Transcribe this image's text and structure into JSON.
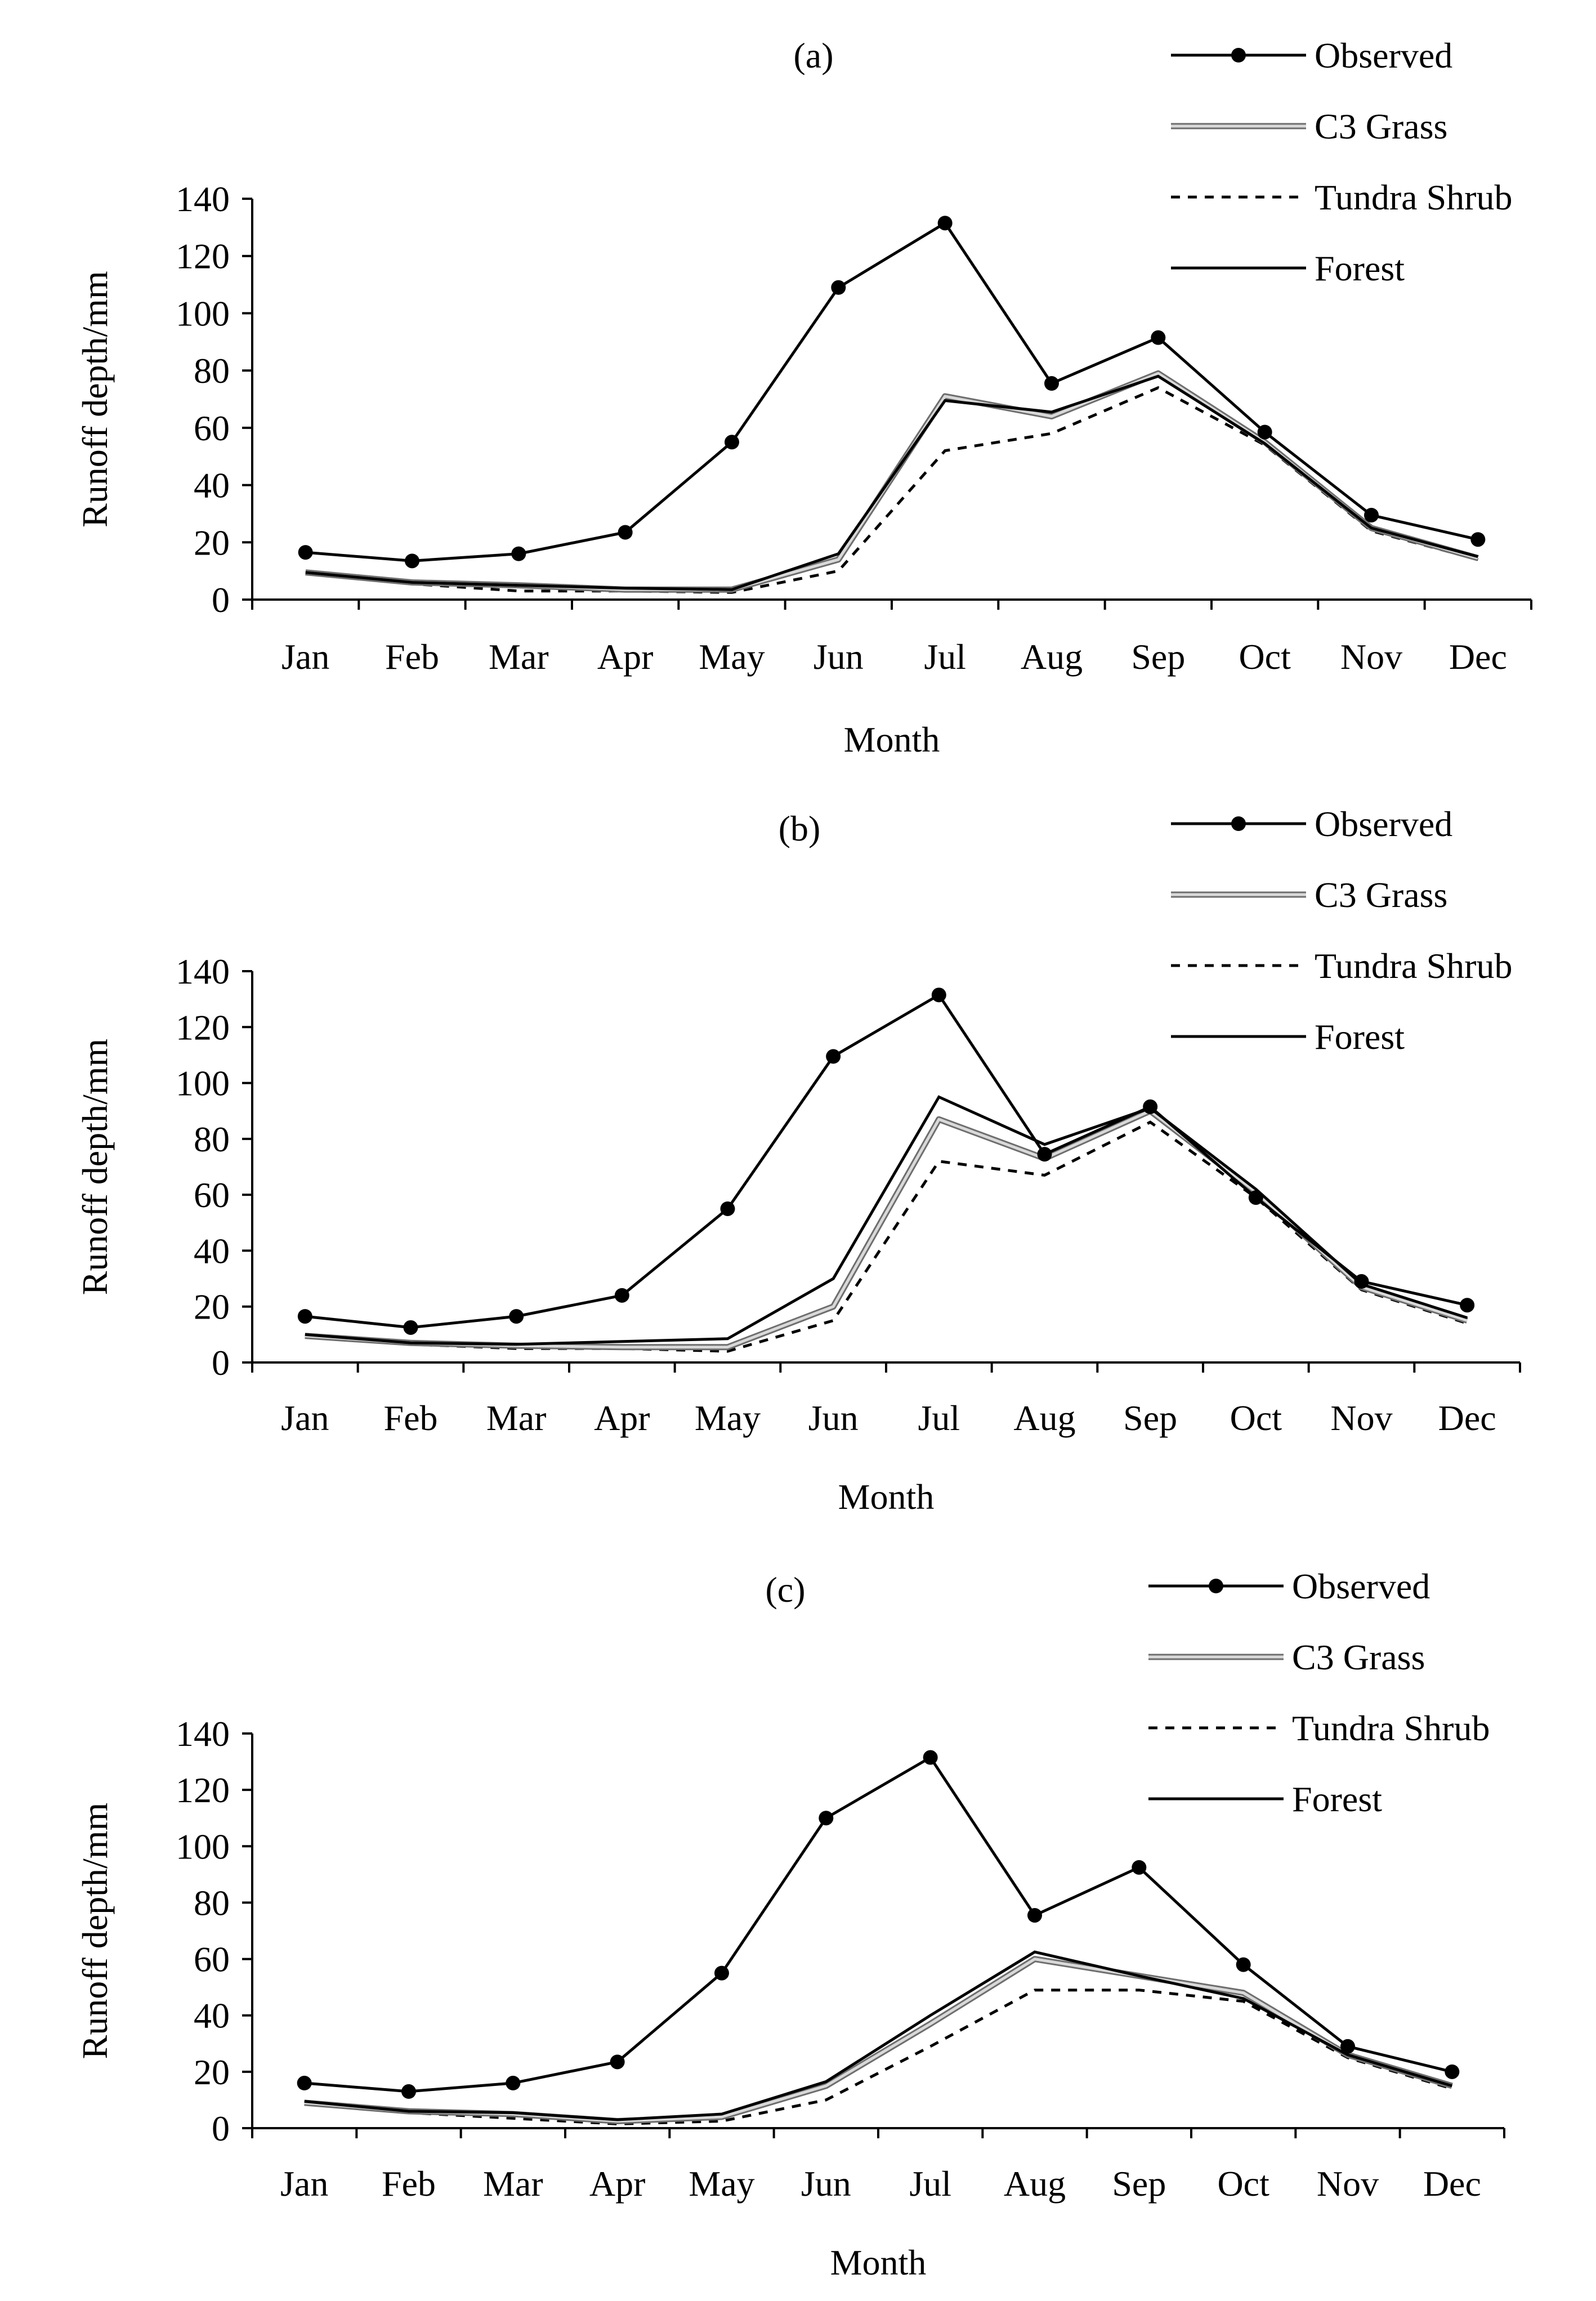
{
  "chart_data": [
    {
      "type": "line",
      "title": "(a)",
      "xlabel": "Month",
      "ylabel": "Runoff depth/mm",
      "ylim": [
        0,
        140
      ],
      "yticks": [
        "0",
        "20",
        "40",
        "60",
        "80",
        "100",
        "120",
        "140"
      ],
      "categories": [
        "Jan",
        "Feb",
        "Mar",
        "Apr",
        "May",
        "Jun",
        "Jul",
        "Aug",
        "Sep",
        "Oct",
        "Nov",
        "Dec"
      ],
      "grid": false,
      "legend_position": "top-right",
      "series": [
        {
          "name": "Observed",
          "style": "solid-markers",
          "values": [
            16.5,
            13.5,
            16,
            23.5,
            55,
            109,
            131.5,
            75.5,
            91.5,
            58.5,
            29.5,
            21
          ]
        },
        {
          "name": "C3 Grass",
          "style": "gray-double",
          "values": [
            9.5,
            6,
            5,
            3.5,
            3.5,
            14,
            71,
            64,
            79,
            55,
            25,
            14.5
          ]
        },
        {
          "name": "Tundra Shrub",
          "style": "dashed",
          "values": [
            9,
            5.5,
            3,
            3,
            2.5,
            10,
            52,
            58,
            74,
            54,
            24,
            14
          ]
        },
        {
          "name": "Forest",
          "style": "solid",
          "values": [
            9.5,
            6,
            5,
            4,
            3.5,
            16,
            69.5,
            65.5,
            78,
            54.5,
            25,
            15
          ]
        }
      ]
    },
    {
      "type": "line",
      "title": "(b)",
      "xlabel": "Month",
      "ylabel": "Runoff depth/mm",
      "ylim": [
        0,
        140
      ],
      "yticks": [
        "0",
        "20",
        "40",
        "60",
        "80",
        "100",
        "120",
        "140"
      ],
      "categories": [
        "Jan",
        "Feb",
        "Mar",
        "Apr",
        "May",
        "Jun",
        "Jul",
        "Aug",
        "Sep",
        "Oct",
        "Nov",
        "Dec"
      ],
      "grid": false,
      "legend_position": "top-right",
      "series": [
        {
          "name": "Observed",
          "style": "solid-markers",
          "values": [
            16.5,
            12.5,
            16.5,
            24,
            55,
            109.5,
            131.5,
            74.5,
            91.5,
            59,
            29,
            20.5
          ]
        },
        {
          "name": "C3 Grass",
          "style": "gray-double",
          "values": [
            9.5,
            7,
            6,
            5.5,
            5.5,
            20,
            87,
            73,
            90,
            61,
            27,
            15
          ]
        },
        {
          "name": "Tundra Shrub",
          "style": "dashed",
          "values": [
            9,
            6.5,
            5,
            5,
            4,
            15,
            72,
            67,
            86,
            59,
            26,
            14
          ]
        },
        {
          "name": "Forest",
          "style": "solid",
          "values": [
            10,
            7,
            6.5,
            7.5,
            8.5,
            30,
            95,
            78,
            91,
            62,
            28,
            16
          ]
        }
      ]
    },
    {
      "type": "line",
      "title": "(c)",
      "xlabel": "Month",
      "ylabel": "Runoff depth/mm",
      "ylim": [
        0,
        140
      ],
      "yticks": [
        "0",
        "20",
        "40",
        "60",
        "80",
        "100",
        "120",
        "140"
      ],
      "categories": [
        "Jan",
        "Feb",
        "Mar",
        "Apr",
        "May",
        "Jun",
        "Jul",
        "Aug",
        "Sep",
        "Oct",
        "Nov",
        "Dec"
      ],
      "grid": false,
      "legend_position": "top-right",
      "series": [
        {
          "name": "Observed",
          "style": "solid-markers",
          "values": [
            16,
            13,
            16,
            23.5,
            55,
            110,
            131.5,
            75.5,
            92.5,
            58,
            29,
            20
          ]
        },
        {
          "name": "C3 Grass",
          "style": "gray-double",
          "values": [
            9,
            6,
            5,
            2.5,
            4,
            15,
            37,
            60,
            54,
            48,
            26,
            15
          ]
        },
        {
          "name": "Tundra Shrub",
          "style": "dashed",
          "values": [
            9,
            5.5,
            3.5,
            1.5,
            2.5,
            10,
            29,
            49,
            49,
            45,
            25,
            14
          ]
        },
        {
          "name": "Forest",
          "style": "solid",
          "values": [
            9.5,
            6,
            5.5,
            3,
            5,
            16.5,
            40,
            62.5,
            54,
            46,
            26,
            15
          ]
        }
      ]
    }
  ],
  "colors": {
    "line": "#000000",
    "c3_grass_outer": "#6e6e6e",
    "c3_grass_inner": "#d9d9d9"
  }
}
